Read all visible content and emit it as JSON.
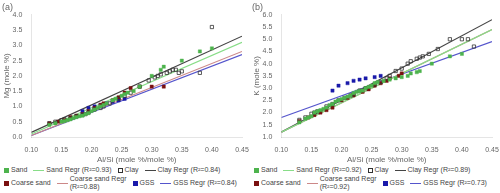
{
  "chart_data": [
    {
      "type": "scatter",
      "title": "(a)",
      "xlabel": "Al/Si (mole %/mole %)",
      "ylabel": "Mg (mole %)",
      "xlim": [
        0.1,
        0.45
      ],
      "ylim": [
        0.0,
        4.0
      ],
      "xticks": [
        {
          "value": 0.1,
          "label": "0.10"
        },
        0.15,
        {
          "value": 0.2,
          "label": "0.20"
        },
        0.25,
        {
          "value": 0.3,
          "label": "0.30"
        },
        0.35,
        {
          "value": 0.4,
          "label": "0.40"
        },
        0.45
      ],
      "yticks": [
        {
          "value": 0,
          "label": "0.0"
        },
        0.5,
        {
          "value": 1,
          "label": "1.0"
        },
        1.5,
        {
          "value": 2,
          "label": "2.0"
        },
        2.5,
        {
          "value": 3,
          "label": "3.0"
        },
        3.5,
        {
          "value": 4,
          "label": "4.0"
        }
      ],
      "grid": false,
      "legend": "bottom",
      "series": [
        {
          "name": "Sand",
          "type": "scatter",
          "marker": "square",
          "color": "#4db34d",
          "x": [
            0.13,
            0.14,
            0.15,
            0.155,
            0.16,
            0.165,
            0.17,
            0.175,
            0.18,
            0.185,
            0.19,
            0.195,
            0.2,
            0.205,
            0.21,
            0.215,
            0.22,
            0.225,
            0.235,
            0.24,
            0.25,
            0.255,
            0.26,
            0.27,
            0.28,
            0.3,
            0.315,
            0.32,
            0.35,
            0.38,
            0.4
          ],
          "values": [
            0.4,
            0.45,
            0.5,
            0.52,
            0.55,
            0.58,
            0.62,
            0.65,
            0.68,
            0.7,
            0.75,
            0.78,
            0.85,
            0.9,
            0.95,
            1.0,
            1.05,
            1.1,
            1.2,
            1.25,
            1.35,
            1.4,
            1.45,
            1.5,
            1.65,
            2.0,
            2.2,
            2.3,
            2.5,
            2.8,
            2.9
          ]
        },
        {
          "name": "Sand Regr (R²=0.93)",
          "type": "line",
          "color": "#88dd88",
          "x": [
            0.1,
            0.45
          ],
          "values": [
            0.1,
            3.1
          ]
        },
        {
          "name": "Clay",
          "type": "scatter",
          "marker": "open_square",
          "color": "#333333",
          "x": [
            0.13,
            0.14,
            0.15,
            0.155,
            0.165,
            0.175,
            0.185,
            0.19,
            0.195,
            0.205,
            0.215,
            0.22,
            0.23,
            0.245,
            0.255,
            0.265,
            0.28,
            0.295,
            0.305,
            0.31,
            0.315,
            0.325,
            0.33,
            0.335,
            0.34,
            0.345,
            0.35,
            0.38,
            0.4
          ],
          "values": [
            0.45,
            0.5,
            0.55,
            0.58,
            0.62,
            0.68,
            0.72,
            0.75,
            0.8,
            0.9,
            0.95,
            1.0,
            1.1,
            1.25,
            1.35,
            1.45,
            1.65,
            1.85,
            1.95,
            2.0,
            2.05,
            2.1,
            2.15,
            2.2,
            2.2,
            2.1,
            2.15,
            2.1,
            3.6
          ]
        },
        {
          "name": "Clay Regr (R²=0.84)",
          "type": "line",
          "color": "#444444",
          "x": [
            0.1,
            0.45
          ],
          "values": [
            0.15,
            3.3
          ]
        },
        {
          "name": "Coarse sand",
          "type": "scatter",
          "marker": "square",
          "color": "#7a1010",
          "x": [
            0.13,
            0.145,
            0.155,
            0.165,
            0.175,
            0.185,
            0.195,
            0.205,
            0.215,
            0.22,
            0.235,
            0.245,
            0.255,
            0.265,
            0.28,
            0.3,
            0.32
          ],
          "values": [
            0.45,
            0.5,
            0.55,
            0.65,
            0.7,
            0.75,
            0.85,
            0.95,
            1.05,
            1.1,
            1.2,
            1.3,
            1.45,
            1.6,
            1.65,
            1.65,
            1.65
          ]
        },
        {
          "name": "Coarse sand Regr\n(R²=0.88)",
          "type": "line",
          "color": "#cc8888",
          "x": [
            0.1,
            0.45
          ],
          "values": [
            0.05,
            2.8
          ]
        },
        {
          "name": "GSS",
          "type": "scatter",
          "marker": "square",
          "color": "#1a1aaa",
          "x": [
            0.185,
            0.195,
            0.205,
            0.215,
            0.225,
            0.235,
            0.245,
            0.255
          ],
          "values": [
            0.85,
            0.95,
            1.0,
            1.05,
            1.1,
            1.15,
            1.2,
            1.25
          ]
        },
        {
          "name": "GSS Regr (R²=0.84)",
          "type": "line",
          "color": "#5555cc",
          "x": [
            0.1,
            0.45
          ],
          "values": [
            0.05,
            2.7
          ]
        }
      ]
    },
    {
      "type": "scatter",
      "title": "(b)",
      "xlabel": "Al/Si (mole %/mole %)",
      "ylabel": "K (mole %)",
      "xlim": [
        0.1,
        0.45
      ],
      "ylim": [
        1.0,
        6.0
      ],
      "xticks": [
        {
          "value": 0.1,
          "label": "0.10"
        },
        0.15,
        {
          "value": 0.2,
          "label": "0.20"
        },
        0.25,
        {
          "value": 0.3,
          "label": "0.30"
        },
        0.35,
        {
          "value": 0.4,
          "label": "0.40"
        },
        0.45
      ],
      "yticks": [
        {
          "value": 1,
          "label": "1.0"
        },
        1.5,
        {
          "value": 2,
          "label": "2.0"
        },
        2.5,
        {
          "value": 3,
          "label": "3.0"
        },
        3.5,
        {
          "value": 4,
          "label": "4.0"
        },
        4.5,
        {
          "value": 5,
          "label": "5.0"
        },
        5.5,
        {
          "value": 6,
          "label": "6.0"
        }
      ],
      "grid": false,
      "legend": "bottom",
      "series": [
        {
          "name": "Sand",
          "type": "scatter",
          "marker": "square",
          "color": "#4db34d",
          "x": [
            0.13,
            0.14,
            0.145,
            0.15,
            0.155,
            0.16,
            0.165,
            0.17,
            0.175,
            0.18,
            0.185,
            0.19,
            0.195,
            0.2,
            0.205,
            0.21,
            0.215,
            0.22,
            0.225,
            0.23,
            0.235,
            0.24,
            0.245,
            0.25,
            0.255,
            0.26,
            0.27,
            0.28,
            0.29,
            0.3,
            0.31,
            0.315,
            0.325,
            0.33,
            0.35,
            0.38,
            0.4
          ],
          "values": [
            1.6,
            1.75,
            1.8,
            1.85,
            2.0,
            2.05,
            2.1,
            2.15,
            2.2,
            2.3,
            2.35,
            2.45,
            2.5,
            2.55,
            2.6,
            2.65,
            2.7,
            2.8,
            2.85,
            2.88,
            2.9,
            3.0,
            3.05,
            3.1,
            3.2,
            3.25,
            3.3,
            3.35,
            3.4,
            3.45,
            3.5,
            3.6,
            3.65,
            3.7,
            4.0,
            4.3,
            4.4
          ]
        },
        {
          "name": "Sand Regr (R²=0.92)",
          "type": "line",
          "color": "#88dd88",
          "x": [
            0.1,
            0.45
          ],
          "values": [
            1.2,
            5.4
          ]
        },
        {
          "name": "Clay",
          "type": "scatter",
          "marker": "open_square",
          "color": "#333333",
          "x": [
            0.13,
            0.14,
            0.15,
            0.155,
            0.16,
            0.175,
            0.185,
            0.195,
            0.205,
            0.215,
            0.22,
            0.23,
            0.24,
            0.255,
            0.265,
            0.275,
            0.28,
            0.29,
            0.3,
            0.31,
            0.315,
            0.325,
            0.33,
            0.335,
            0.345,
            0.36,
            0.38,
            0.4,
            0.41,
            0.42
          ],
          "values": [
            1.7,
            1.8,
            1.95,
            2.0,
            2.05,
            2.25,
            2.35,
            2.5,
            2.6,
            2.7,
            2.75,
            2.9,
            3.0,
            3.15,
            3.25,
            3.4,
            3.5,
            3.7,
            3.8,
            4.0,
            4.1,
            4.2,
            4.25,
            4.3,
            4.4,
            4.6,
            5.0,
            5.0,
            5.0,
            4.7
          ]
        },
        {
          "name": "Clay Regr (R²=0.89)",
          "type": "line",
          "color": "#444444",
          "x": [
            0.1,
            0.45
          ],
          "values": [
            1.2,
            5.8
          ]
        },
        {
          "name": "Coarse sand",
          "type": "scatter",
          "marker": "square",
          "color": "#7a1010",
          "x": [
            0.13,
            0.145,
            0.155,
            0.165,
            0.175,
            0.185,
            0.2,
            0.21,
            0.22,
            0.235,
            0.245,
            0.255,
            0.265,
            0.275,
            0.28,
            0.295,
            0.3
          ],
          "values": [
            1.65,
            1.8,
            1.9,
            2.0,
            2.1,
            2.2,
            2.5,
            2.6,
            2.7,
            2.85,
            2.95,
            3.1,
            3.2,
            3.3,
            3.4,
            3.5,
            3.6
          ]
        },
        {
          "name": "Coarse sand Regr\n(R²=0.92)",
          "type": "line",
          "color": "#cc8888",
          "x": [
            0.1,
            0.45
          ],
          "values": [
            1.2,
            5.4
          ]
        },
        {
          "name": "GSS",
          "type": "scatter",
          "marker": "square",
          "color": "#1a1aaa",
          "x": [
            0.185,
            0.195,
            0.21,
            0.22,
            0.23,
            0.24,
            0.255,
            0.265
          ],
          "values": [
            2.9,
            3.1,
            3.2,
            3.3,
            3.35,
            3.4,
            3.45,
            3.5
          ]
        },
        {
          "name": "GSS Regr (R²=0.73)",
          "type": "line",
          "color": "#5555cc",
          "x": [
            0.1,
            0.45
          ],
          "values": [
            1.8,
            4.9
          ]
        }
      ]
    }
  ]
}
